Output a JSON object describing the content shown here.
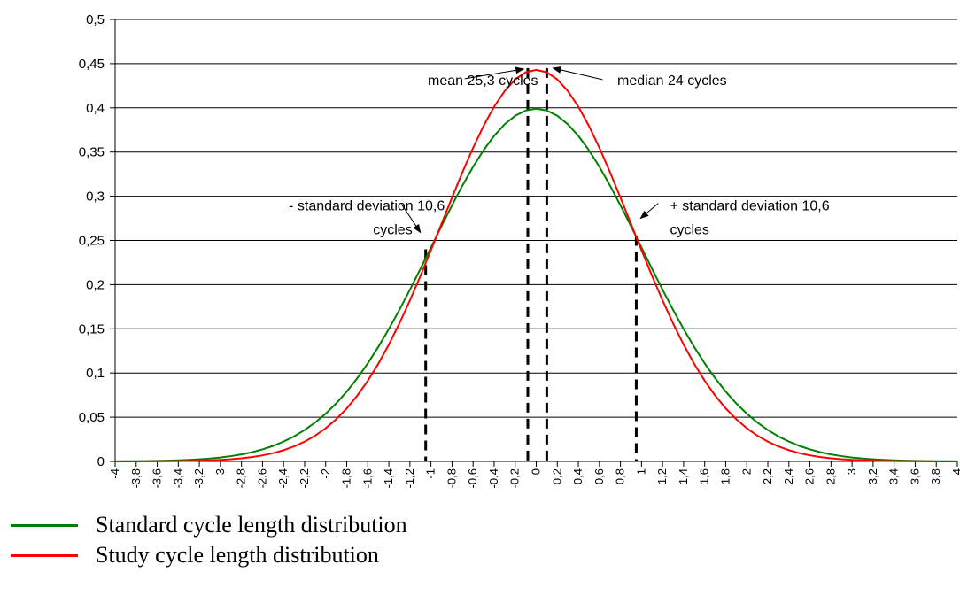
{
  "chart_data": {
    "type": "line",
    "x_range": [
      -4,
      4
    ],
    "x_step": 0.1,
    "x_tick_step": 0.2,
    "ylim": [
      0,
      0.5
    ],
    "y_tick_labels": [
      "0",
      "0,05",
      "0,1",
      "0,15",
      "0,2",
      "0,25",
      "0,3",
      "0,35",
      "0,4",
      "0,45",
      "0,5"
    ],
    "grid": "horizontal",
    "legend_placement": "bottom-left",
    "series": [
      {
        "name": "Standard cycle length distribution",
        "color": "#008000",
        "peak": 0.399,
        "sigma": 1.0
      },
      {
        "name": "Study cycle length distribution",
        "color": "#ff0000",
        "peak": 0.443,
        "sigma": 0.9
      }
    ],
    "vlines": [
      {
        "x": -1.05,
        "top": 0.24
      },
      {
        "x": -0.08,
        "top": 0.445
      },
      {
        "x": 0.1,
        "top": 0.445
      },
      {
        "x": 0.95,
        "top": 0.255
      }
    ],
    "annotations": [
      {
        "text": "mean 25,3 cycles",
        "x": -1.03,
        "y": 0.426
      },
      {
        "text": "median 24 cycles",
        "x": 0.77,
        "y": 0.426
      },
      {
        "text": "- standard deviation 10,6",
        "x": -2.35,
        "y": 0.284
      },
      {
        "text": "cycles",
        "x": -1.55,
        "y": 0.257
      },
      {
        "text": "+ standard deviation 10,6",
        "x": 1.27,
        "y": 0.284
      },
      {
        "text": "cycles",
        "x": 1.27,
        "y": 0.257
      }
    ],
    "arrows": [
      {
        "from": [
          -0.68,
          0.433
        ],
        "to": [
          -0.12,
          0.444
        ]
      },
      {
        "from": [
          0.63,
          0.432
        ],
        "to": [
          0.16,
          0.445
        ]
      },
      {
        "from": [
          -1.28,
          0.291
        ],
        "to": [
          -1.1,
          0.259
        ]
      },
      {
        "from": [
          1.16,
          0.292
        ],
        "to": [
          0.99,
          0.275
        ]
      }
    ]
  },
  "legend": {
    "items": [
      {
        "label": "Standard cycle length distribution",
        "color": "#008000"
      },
      {
        "label": "Study cycle length distribution",
        "color": "#ff0000"
      }
    ]
  }
}
